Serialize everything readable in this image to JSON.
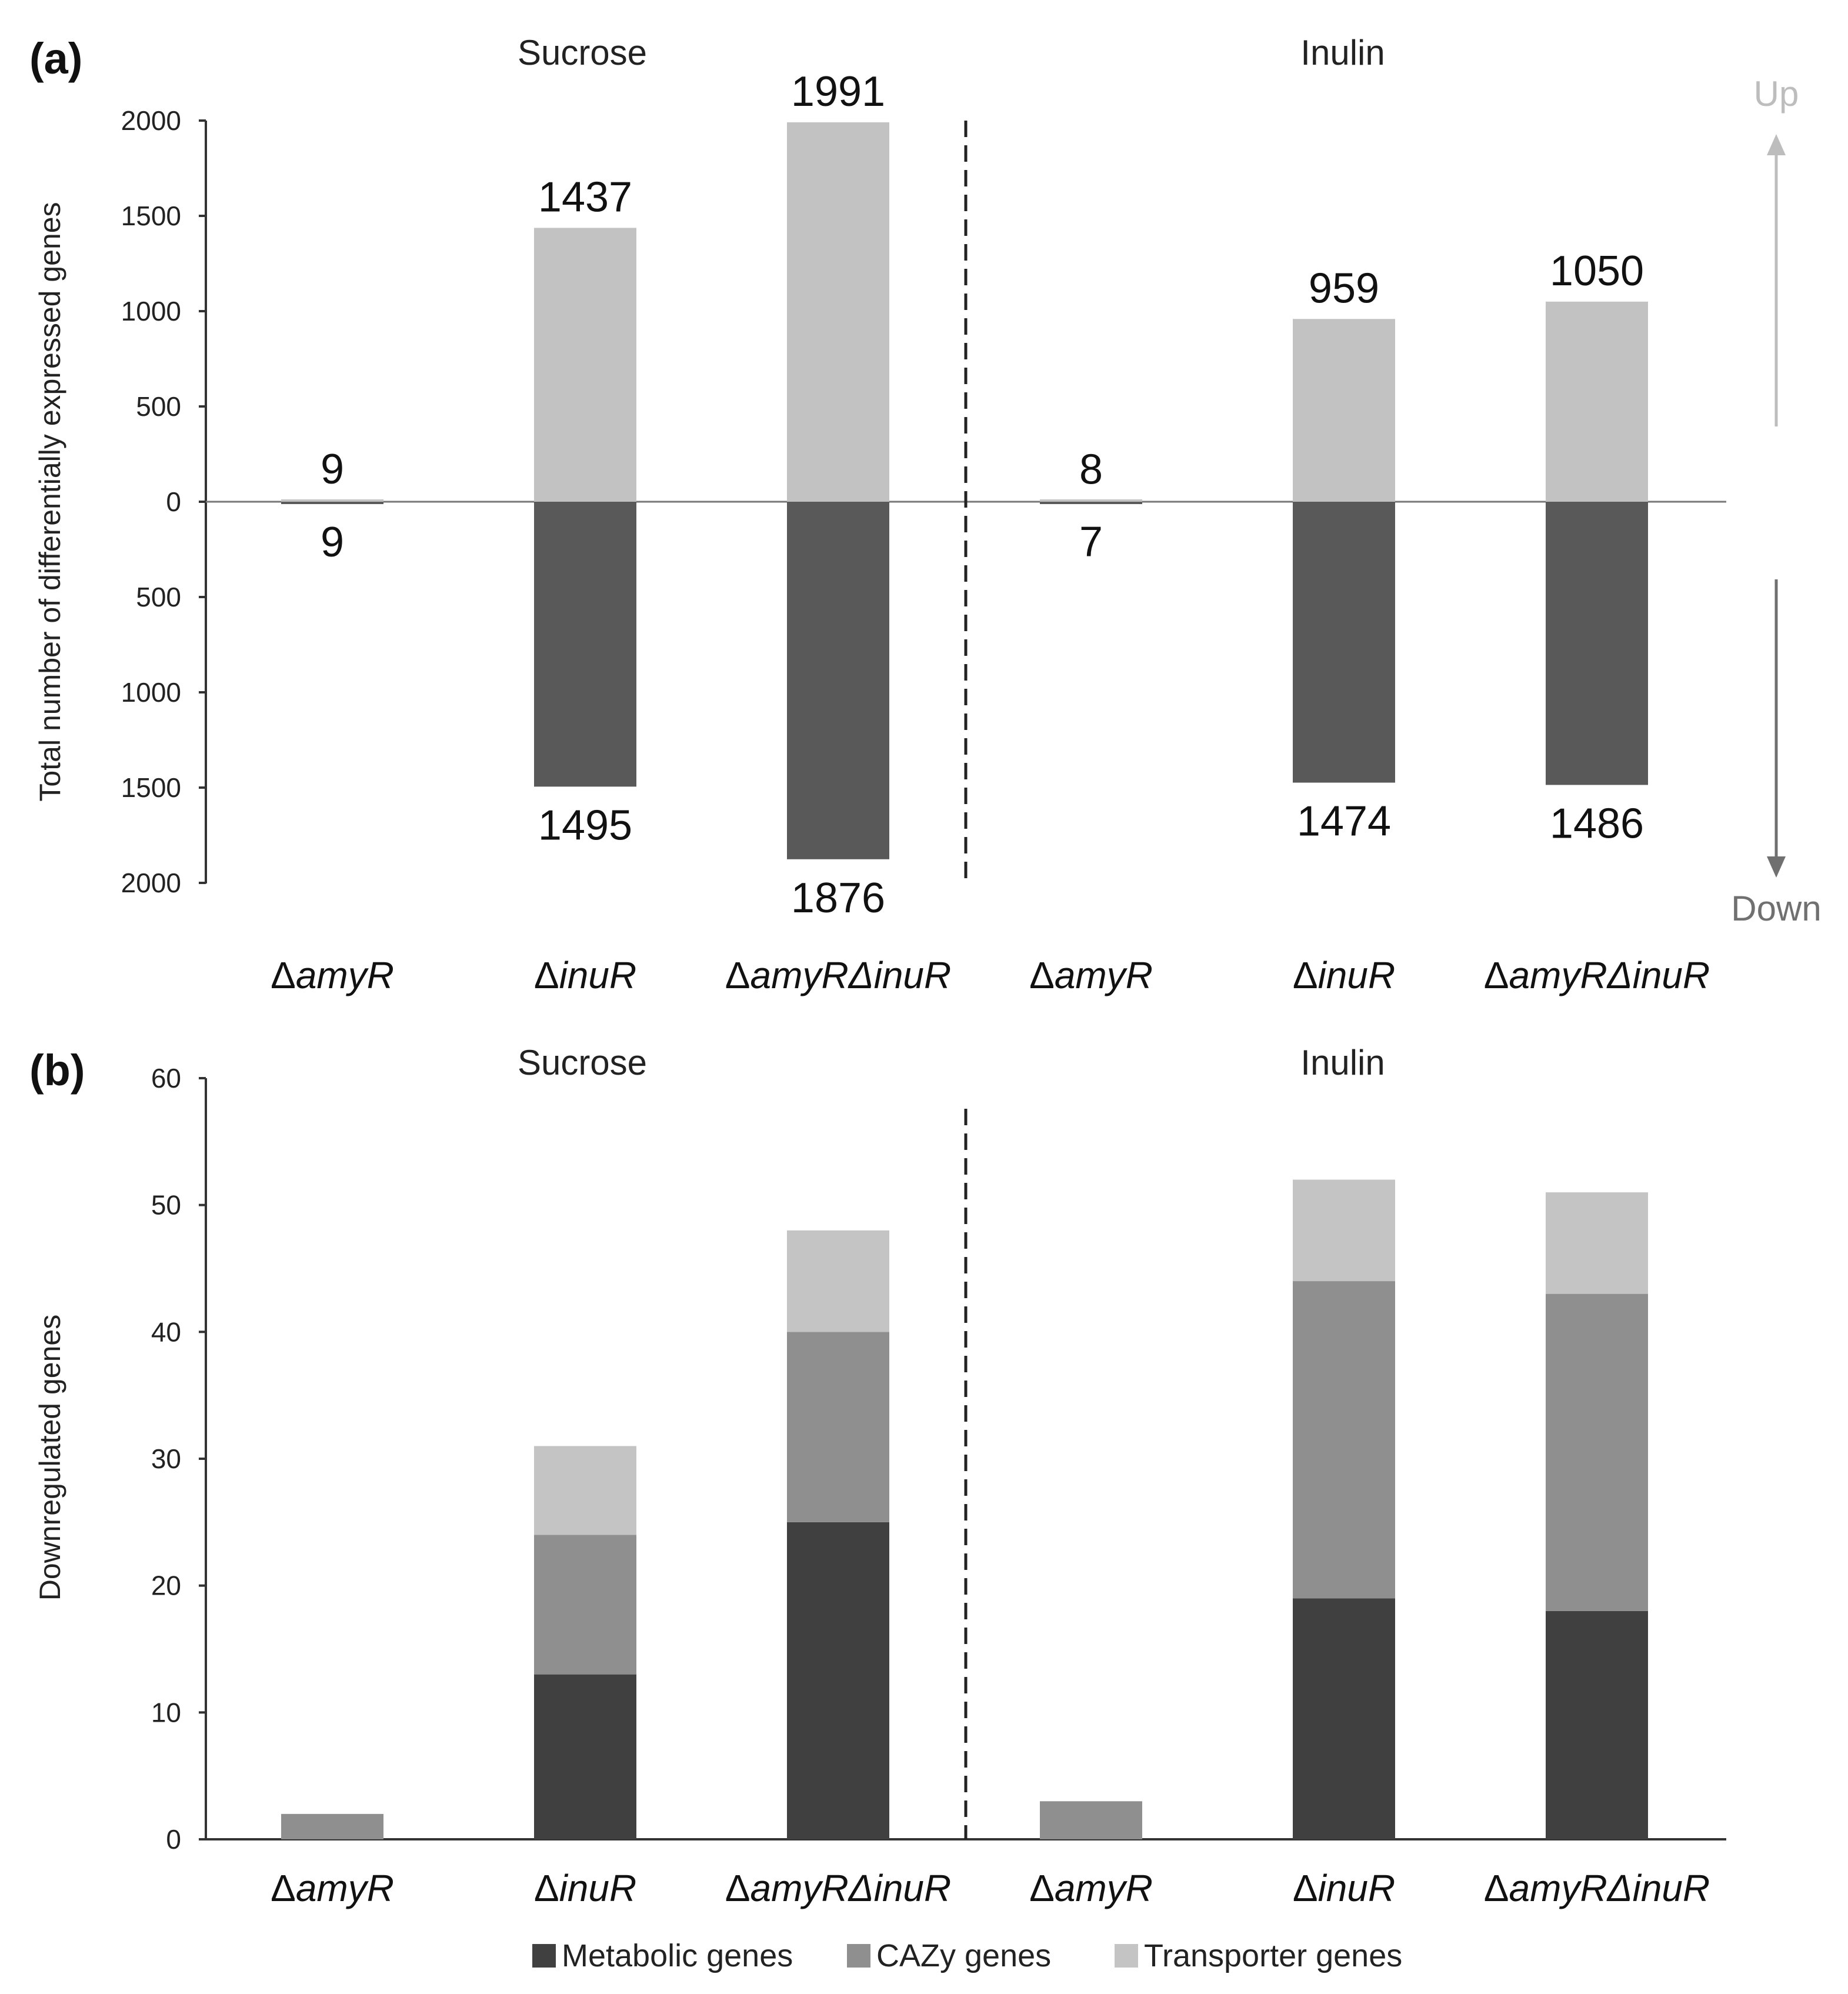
{
  "colors": {
    "up": "#c2c2c2",
    "down": "#595959",
    "metabolic": "#404040",
    "cazy": "#8f8f8f",
    "transporter": "#c4c4c4",
    "up_arrow": "#bdbdbd",
    "down_arrow": "#707070"
  },
  "chart_data": [
    {
      "panel": "(a)",
      "type": "bar",
      "groups": [
        "Sucrose",
        "Inulin"
      ],
      "categories": [
        "Sucrose ΔamyR",
        "Sucrose ΔinuR",
        "Sucrose ΔamyRΔinuR",
        "Inulin ΔamyR",
        "Inulin ΔinuR",
        "Inulin ΔamyRΔinuR"
      ],
      "category_labels": [
        {
          "delta": "Δ",
          "name": "amyR"
        },
        {
          "delta": "Δ",
          "name": "inuR"
        },
        {
          "delta": "Δ",
          "name": "amyRΔinuR"
        },
        {
          "delta": "Δ",
          "name": "amyR"
        },
        {
          "delta": "Δ",
          "name": "inuR"
        },
        {
          "delta": "Δ",
          "name": "amyRΔinuR"
        }
      ],
      "series": [
        {
          "name": "Up",
          "values": [
            9,
            1437,
            1991,
            8,
            959,
            1050
          ]
        },
        {
          "name": "Down",
          "values": [
            9,
            1495,
            1876,
            7,
            1474,
            1486
          ]
        }
      ],
      "value_labels_up": [
        "9",
        "1437",
        "1991",
        "8",
        "959",
        "1050"
      ],
      "value_labels_down": [
        "9",
        "1495",
        "1876",
        "7",
        "1474",
        "1486"
      ],
      "ylabel": "Total number of differentially expressed genes",
      "ylim": [
        -2000,
        2000
      ],
      "yticks": [
        2000,
        1500,
        1000,
        500,
        0,
        -500,
        -1000,
        -1500,
        -2000
      ],
      "ytick_labels": [
        "2000",
        "1500",
        "1000",
        "500",
        "0",
        "500",
        "1000",
        "1500",
        "2000"
      ],
      "direction_labels": {
        "up": "Up",
        "down": "Down"
      },
      "grid": false,
      "legend": "none"
    },
    {
      "panel": "(b)",
      "type": "bar",
      "stacked": true,
      "groups": [
        "Sucrose",
        "Inulin"
      ],
      "categories": [
        "Sucrose ΔamyR",
        "Sucrose ΔinuR",
        "Sucrose ΔamyRΔinuR",
        "Inulin ΔamyR",
        "Inulin ΔinuR",
        "Inulin ΔamyRΔinuR"
      ],
      "category_labels": [
        {
          "delta": "Δ",
          "name": "amyR"
        },
        {
          "delta": "Δ",
          "name": "inuR"
        },
        {
          "delta": "Δ",
          "name": "amyRΔinuR"
        },
        {
          "delta": "Δ",
          "name": "amyR"
        },
        {
          "delta": "Δ",
          "name": "inuR"
        },
        {
          "delta": "Δ",
          "name": "amyRΔinuR"
        }
      ],
      "series": [
        {
          "name": "Metabolic genes",
          "values": [
            0,
            13,
            25,
            0,
            19,
            18
          ]
        },
        {
          "name": "CAZy genes",
          "values": [
            2,
            11,
            15,
            3,
            25,
            25
          ]
        },
        {
          "name": "Transporter genes",
          "values": [
            0,
            7,
            8,
            0,
            8,
            8
          ]
        }
      ],
      "ylabel": "Downregulated genes",
      "ylim": [
        0,
        60
      ],
      "yticks": [
        0,
        10,
        20,
        30,
        40,
        50,
        60
      ],
      "ytick_labels": [
        "0",
        "10",
        "20",
        "30",
        "40",
        "50",
        "60"
      ],
      "grid": false,
      "legend": "bottom-center"
    }
  ]
}
